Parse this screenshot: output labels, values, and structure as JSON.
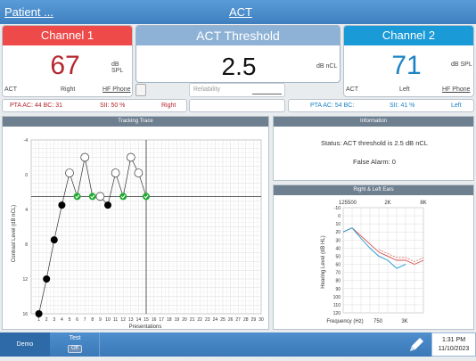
{
  "header": {
    "patient": "Patient ...",
    "title": "ACT"
  },
  "channel1": {
    "title": "Channel 1",
    "value": "67",
    "unit": "dB SPL",
    "mode": "ACT",
    "ear": "Right",
    "transducer": "HF Phone",
    "pta": "PTA AC: 44 BC: 31",
    "sii": "SII: 50 %",
    "side": "Right",
    "color": "#ee4444"
  },
  "threshold": {
    "title": "ACT Threshold",
    "value": "2.5",
    "unit": "dB nCL",
    "reliability": "Reliability"
  },
  "channel2": {
    "title": "Channel 2",
    "value": "71",
    "unit": "dB SPL",
    "mode": "ACT",
    "ear": "Left",
    "transducer": "HF Phone",
    "pta": "PTA AC: 54 BC:",
    "sii": "SII: 41 %",
    "side": "Left",
    "color": "#1a9ad6"
  },
  "tracking": {
    "title": "Tracking Trace",
    "ylabel": "Contrast Level (dB nCL)",
    "xlabel": "Presentations"
  },
  "information": {
    "title": "Information",
    "status": "Status: ACT threshold is  2.5 dB nCL",
    "false_alarm": "False Alarm: 0"
  },
  "ears": {
    "title": "Right & Left Ears",
    "ylabel": "Hearing Level (dB HL)",
    "xlabel": "Frequency (Hz)",
    "x_top": [
      "125",
      "500",
      "2K",
      "8K"
    ],
    "x_bottom": [
      "750",
      "3K"
    ],
    "y_ticks": [
      "-10",
      "0",
      "10",
      "20",
      "30",
      "40",
      "50",
      "60",
      "70",
      "80",
      "90",
      "100",
      "110",
      "120"
    ]
  },
  "footer": {
    "demo": "Demo",
    "test_label": "Test",
    "test_value": "Off",
    "time": "1:31 PM",
    "date": "11/10/2023"
  },
  "chart_data": [
    {
      "type": "line",
      "title": "Tracking Trace",
      "xlabel": "Presentations",
      "ylabel": "Contrast Level (dB nCL)",
      "x_ticks": [
        "1",
        "2",
        "3",
        "4",
        "5",
        "6",
        "7",
        "8",
        "9",
        "10",
        "11",
        "12",
        "13",
        "14",
        "15",
        "16",
        "17",
        "18",
        "19",
        "20",
        "21",
        "22",
        "23",
        "24",
        "25",
        "26",
        "27",
        "28",
        "29",
        "30"
      ],
      "y_ticks": [
        "-4",
        "0",
        "4",
        "8",
        "12",
        "16"
      ],
      "ylim": [
        -4,
        16
      ],
      "xlim": [
        0,
        30
      ],
      "y_inverted": true,
      "threshold_line": 2.5,
      "threshold_x": 15,
      "points": [
        {
          "x": 1,
          "y": 16,
          "type": "filled"
        },
        {
          "x": 2,
          "y": 12,
          "type": "filled"
        },
        {
          "x": 3,
          "y": 7.5,
          "type": "filled"
        },
        {
          "x": 4,
          "y": 3.5,
          "type": "filled"
        },
        {
          "x": 5,
          "y": -0.2,
          "type": "open"
        },
        {
          "x": 6,
          "y": 2.5,
          "type": "check"
        },
        {
          "x": 7,
          "y": -2,
          "type": "open"
        },
        {
          "x": 8,
          "y": 2.5,
          "type": "check"
        },
        {
          "x": 9,
          "y": 2.5,
          "type": "open"
        },
        {
          "x": 10,
          "y": 3.5,
          "type": "filled"
        },
        {
          "x": 11,
          "y": -0.2,
          "type": "open"
        },
        {
          "x": 12,
          "y": 2.5,
          "type": "check"
        },
        {
          "x": 13,
          "y": -2,
          "type": "open"
        },
        {
          "x": 14,
          "y": -0.2,
          "type": "open"
        },
        {
          "x": 15,
          "y": 2.5,
          "type": "check"
        }
      ]
    },
    {
      "type": "line",
      "title": "Right & Left Ears",
      "xlabel": "Frequency (Hz)",
      "ylabel": "Hearing Level (dB HL)",
      "ylim": [
        -10,
        120
      ],
      "y_inverted": true,
      "x": [
        "250",
        "500",
        "750",
        "1K",
        "1.5K",
        "2K",
        "3K",
        "4K",
        "6K",
        "8K"
      ],
      "series": [
        {
          "ear": "right",
          "color": "#d9534f",
          "style": "solid+dashed",
          "values": [
            20,
            15,
            25,
            35,
            45,
            50,
            55,
            55,
            60,
            55
          ]
        },
        {
          "ear": "left",
          "color": "#1a9ad6",
          "style": "solid",
          "values": [
            20,
            15,
            28,
            40,
            50,
            55,
            65,
            60,
            null,
            null
          ]
        }
      ]
    }
  ]
}
